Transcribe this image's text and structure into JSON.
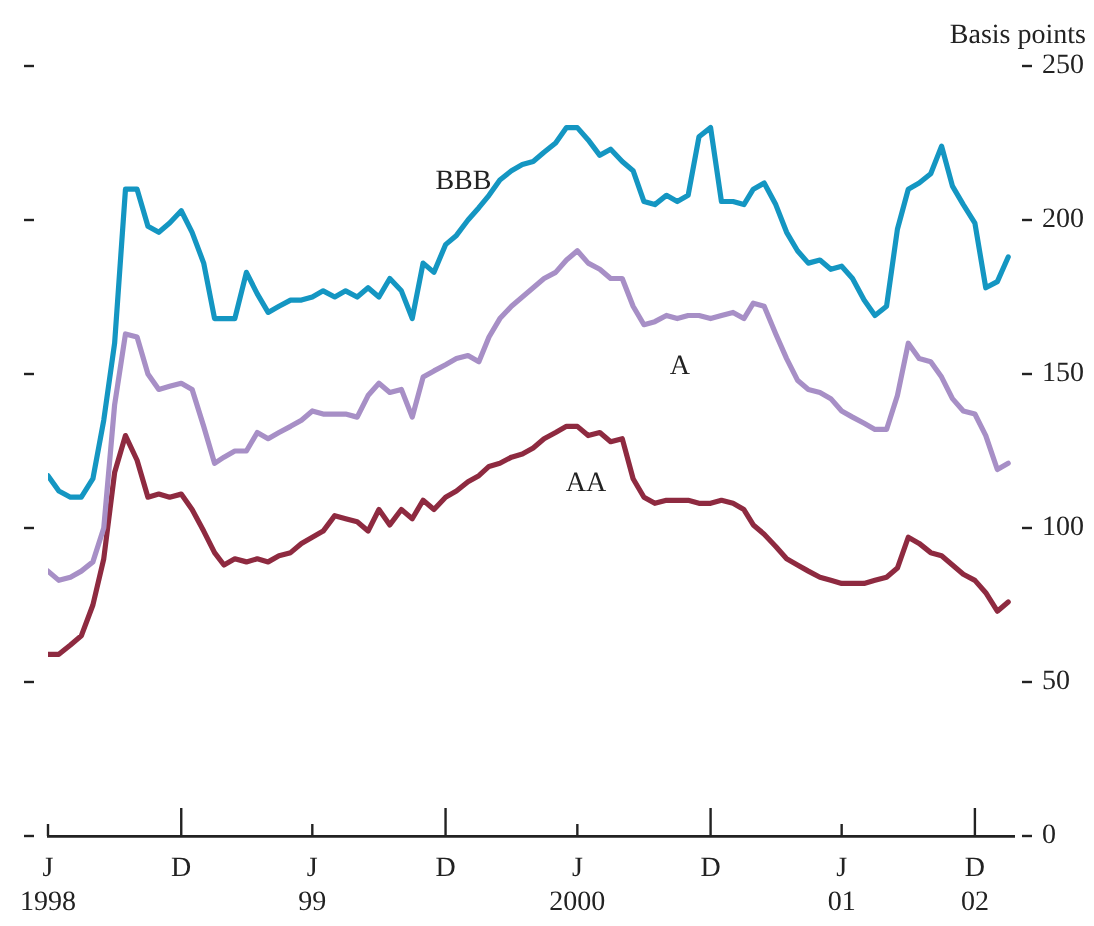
{
  "chart_data": {
    "type": "line",
    "ylabel": "Basis points",
    "marker": "none",
    "legend": false,
    "x": [
      "1998-07-01",
      "1998-07-16",
      "1998-08-01",
      "1998-08-16",
      "1998-09-01",
      "1998-09-16",
      "1998-10-01",
      "1998-10-16",
      "1998-11-01",
      "1998-11-16",
      "1998-12-01",
      "1998-12-16",
      "1999-01-01",
      "1999-01-16",
      "1999-02-01",
      "1999-02-16",
      "1999-03-01",
      "1999-03-16",
      "1999-04-01",
      "1999-04-16",
      "1999-05-01",
      "1999-05-16",
      "1999-06-01",
      "1999-06-16",
      "1999-07-01",
      "1999-07-16",
      "1999-08-01",
      "1999-08-16",
      "1999-09-01",
      "1999-09-16",
      "1999-10-01",
      "1999-10-16",
      "1999-11-01",
      "1999-11-16",
      "1999-12-01",
      "1999-12-16",
      "2000-01-01",
      "2000-01-16",
      "2000-02-01",
      "2000-02-16",
      "2000-03-01",
      "2000-03-16",
      "2000-04-01",
      "2000-04-16",
      "2000-05-01",
      "2000-05-16",
      "2000-06-01",
      "2000-06-16",
      "2000-07-01",
      "2000-07-16",
      "2000-08-01",
      "2000-08-16",
      "2000-09-01",
      "2000-09-16",
      "2000-10-01",
      "2000-10-16",
      "2000-11-01",
      "2000-11-16",
      "2000-12-01",
      "2000-12-16",
      "2001-01-01",
      "2001-01-16",
      "2001-02-01",
      "2001-02-16",
      "2001-03-01",
      "2001-03-16",
      "2001-04-01",
      "2001-04-16",
      "2001-05-01",
      "2001-05-16",
      "2001-06-01",
      "2001-06-16",
      "2001-07-01",
      "2001-07-16",
      "2001-08-01",
      "2001-08-16",
      "2001-09-01",
      "2001-09-16",
      "2001-10-01",
      "2001-10-16",
      "2001-11-01",
      "2001-11-16",
      "2001-12-01",
      "2001-12-16",
      "2002-01-01",
      "2002-01-16",
      "2002-02-01",
      "2002-02-16"
    ],
    "series": [
      {
        "name": "BBB",
        "color": "#1496c2",
        "values": [
          117,
          112,
          110,
          110,
          116,
          135,
          160,
          210,
          210,
          198,
          196,
          199,
          203,
          196,
          186,
          168,
          168,
          168,
          183,
          176,
          170,
          172,
          174,
          174,
          175,
          177,
          175,
          177,
          175,
          178,
          175,
          181,
          177,
          168,
          186,
          183,
          192,
          195,
          200,
          204,
          208,
          213,
          216,
          218,
          219,
          222,
          225,
          230,
          230,
          226,
          221,
          223,
          219,
          216,
          206,
          205,
          208,
          206,
          208,
          227,
          230,
          206,
          206,
          205,
          210,
          212,
          205,
          196,
          190,
          186,
          187,
          184,
          185,
          181,
          174,
          169,
          172,
          197,
          210,
          212,
          215,
          224,
          211,
          205,
          199,
          178,
          180,
          188
        ]
      },
      {
        "name": "A",
        "color": "#a78fc6",
        "values": [
          86,
          83,
          84,
          86,
          89,
          100,
          140,
          163,
          162,
          150,
          145,
          146,
          147,
          145,
          133,
          121,
          123,
          125,
          125,
          131,
          129,
          131,
          133,
          135,
          138,
          137,
          137,
          137,
          136,
          143,
          147,
          144,
          145,
          136,
          149,
          151,
          153,
          155,
          156,
          154,
          162,
          168,
          172,
          175,
          178,
          181,
          183,
          187,
          190,
          186,
          184,
          181,
          181,
          172,
          166,
          167,
          169,
          168,
          169,
          169,
          168,
          169,
          170,
          168,
          173,
          172,
          163,
          155,
          148,
          145,
          144,
          142,
          138,
          136,
          134,
          132,
          132,
          143,
          160,
          155,
          154,
          149,
          142,
          138,
          137,
          130,
          119,
          121
        ]
      },
      {
        "name": "AA",
        "color": "#8e2a40",
        "values": [
          59,
          59,
          62,
          65,
          75,
          90,
          118,
          130,
          122,
          110,
          111,
          110,
          111,
          106,
          99,
          92,
          88,
          90,
          89,
          90,
          89,
          91,
          92,
          95,
          97,
          99,
          104,
          103,
          102,
          99,
          106,
          101,
          106,
          103,
          109,
          106,
          110,
          112,
          115,
          117,
          120,
          121,
          123,
          124,
          126,
          129,
          131,
          133,
          133,
          130,
          131,
          128,
          129,
          116,
          110,
          108,
          109,
          109,
          109,
          108,
          108,
          109,
          108,
          106,
          101,
          98,
          94,
          90,
          88,
          86,
          84,
          83,
          82,
          82,
          82,
          83,
          84,
          87,
          97,
          95,
          92,
          91,
          88,
          85,
          83,
          79,
          73,
          76
        ]
      }
    ],
    "xlim": [
      "1998-07-01",
      "2002-02-24"
    ],
    "xticks": [
      {
        "value": "1998-07-01",
        "label": "J\n1998"
      },
      {
        "value": "1999-01-01",
        "label": "D"
      },
      {
        "value": "1999-07-01",
        "label": "J\n99"
      },
      {
        "value": "2000-01-01",
        "label": "D"
      },
      {
        "value": "2000-07-01",
        "label": "J\n2000"
      },
      {
        "value": "2001-01-01",
        "label": "D"
      },
      {
        "value": "2001-07-01",
        "label": "J\n01"
      },
      {
        "value": "2002-01-01",
        "label": "D\n02"
      }
    ],
    "ylim": [
      0,
      250
    ],
    "yticks": [
      0,
      50,
      100,
      150,
      200,
      250
    ]
  }
}
